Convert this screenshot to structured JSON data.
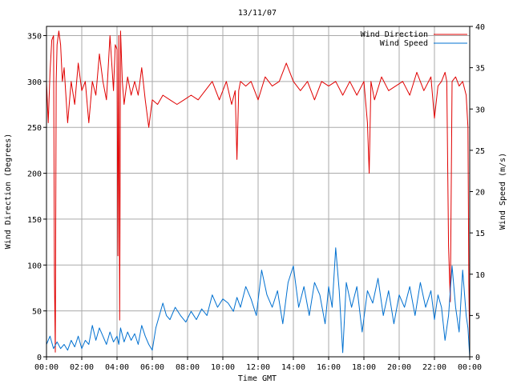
{
  "chart_data": {
    "type": "line",
    "title": "13/11/07",
    "xlabel": "Time GMT",
    "ylabel_left": "Wind Direction (Degrees)",
    "ylabel_right": "Wind Speed (m/s)",
    "xlim_hours": [
      0,
      24
    ],
    "ylim_left": [
      0,
      360
    ],
    "ylim_right": [
      0,
      40
    ],
    "grid": true,
    "legend_position": "top-right",
    "x_tick_labels": [
      "00:00",
      "02:00",
      "04:00",
      "06:00",
      "08:00",
      "10:00",
      "12:00",
      "14:00",
      "16:00",
      "18:00",
      "20:00",
      "22:00",
      "00:00"
    ],
    "y_left_ticks": [
      0,
      50,
      100,
      150,
      200,
      250,
      300,
      350
    ],
    "y_right_ticks": [
      0,
      5,
      10,
      15,
      20,
      25,
      30,
      35,
      40
    ],
    "series": [
      {
        "name": "Wind Direction",
        "axis": "left",
        "color": "#e00000",
        "hours": [
          0.0,
          0.1,
          0.2,
          0.3,
          0.4,
          0.45,
          0.5,
          0.55,
          0.6,
          0.7,
          0.8,
          0.9,
          1.0,
          1.2,
          1.4,
          1.6,
          1.8,
          2.0,
          2.2,
          2.4,
          2.6,
          2.8,
          3.0,
          3.2,
          3.4,
          3.6,
          3.7,
          3.8,
          3.9,
          4.0,
          4.05,
          4.1,
          4.15,
          4.2,
          4.3,
          4.4,
          4.6,
          4.8,
          5.0,
          5.2,
          5.4,
          5.6,
          5.8,
          6.0,
          6.3,
          6.6,
          7.0,
          7.4,
          7.8,
          8.2,
          8.6,
          9.0,
          9.4,
          9.8,
          10.2,
          10.5,
          10.7,
          10.8,
          10.9,
          11.0,
          11.3,
          11.6,
          12.0,
          12.4,
          12.8,
          13.2,
          13.6,
          14.0,
          14.4,
          14.8,
          15.2,
          15.6,
          16.0,
          16.4,
          16.8,
          17.2,
          17.6,
          18.0,
          18.2,
          18.3,
          18.4,
          18.6,
          19.0,
          19.4,
          19.8,
          20.2,
          20.6,
          21.0,
          21.4,
          21.8,
          22.0,
          22.2,
          22.4,
          22.6,
          22.7,
          22.8,
          22.9,
          23.0,
          23.2,
          23.4,
          23.6,
          23.8,
          23.9,
          23.95,
          24.0
        ],
        "values": [
          300,
          255,
          310,
          345,
          350,
          90,
          5,
          300,
          340,
          355,
          340,
          300,
          315,
          255,
          300,
          275,
          320,
          290,
          300,
          255,
          300,
          285,
          330,
          300,
          280,
          350,
          320,
          290,
          340,
          335,
          110,
          350,
          40,
          355,
          300,
          275,
          305,
          285,
          300,
          285,
          315,
          280,
          250,
          280,
          275,
          285,
          280,
          275,
          280,
          285,
          280,
          290,
          300,
          280,
          300,
          275,
          290,
          215,
          290,
          300,
          295,
          300,
          280,
          305,
          295,
          300,
          320,
          300,
          290,
          300,
          280,
          300,
          295,
          300,
          285,
          300,
          285,
          300,
          255,
          200,
          300,
          280,
          305,
          290,
          295,
          300,
          285,
          310,
          290,
          305,
          260,
          295,
          300,
          310,
          300,
          120,
          60,
          300,
          305,
          295,
          300,
          285,
          250,
          80,
          5
        ]
      },
      {
        "name": "Wind Speed",
        "axis": "right",
        "color": "#0070d0",
        "hours": [
          0.0,
          0.2,
          0.4,
          0.6,
          0.8,
          1.0,
          1.2,
          1.4,
          1.6,
          1.8,
          2.0,
          2.2,
          2.4,
          2.6,
          2.8,
          3.0,
          3.2,
          3.4,
          3.6,
          3.8,
          4.0,
          4.1,
          4.2,
          4.4,
          4.6,
          4.8,
          5.0,
          5.2,
          5.4,
          5.6,
          5.8,
          6.0,
          6.2,
          6.4,
          6.6,
          6.8,
          7.0,
          7.3,
          7.6,
          7.9,
          8.2,
          8.5,
          8.8,
          9.1,
          9.4,
          9.7,
          10.0,
          10.3,
          10.6,
          10.8,
          11.0,
          11.3,
          11.6,
          11.9,
          12.2,
          12.5,
          12.8,
          13.1,
          13.4,
          13.7,
          14.0,
          14.3,
          14.6,
          14.9,
          15.2,
          15.5,
          15.8,
          16.0,
          16.2,
          16.4,
          16.6,
          16.8,
          17.0,
          17.3,
          17.6,
          17.9,
          18.2,
          18.5,
          18.8,
          19.1,
          19.4,
          19.7,
          20.0,
          20.3,
          20.6,
          20.9,
          21.2,
          21.5,
          21.8,
          22.0,
          22.2,
          22.4,
          22.6,
          22.8,
          23.0,
          23.2,
          23.4,
          23.6,
          23.8,
          23.9,
          24.0
        ],
        "values": [
          1.5,
          2.5,
          1,
          1.8,
          1,
          1.5,
          0.8,
          2,
          1.2,
          2.5,
          1,
          2,
          1.5,
          3.8,
          2,
          3.5,
          2.5,
          1.5,
          3,
          1.8,
          2.5,
          1.5,
          3.5,
          1.8,
          3,
          2,
          2.8,
          1.5,
          3.8,
          2.5,
          1.5,
          0.8,
          3.5,
          5,
          6.5,
          5,
          4.5,
          6,
          5,
          4.2,
          5.5,
          4.5,
          5.8,
          5,
          7.5,
          6,
          7,
          6.5,
          5.5,
          7.2,
          6,
          8.5,
          7,
          5,
          10.5,
          7.5,
          6,
          8,
          4,
          9,
          11,
          6,
          8.5,
          5,
          9,
          7.5,
          4,
          8.5,
          6,
          13.2,
          8,
          0.5,
          9,
          6,
          8.5,
          3,
          8,
          6.5,
          9.5,
          5,
          8,
          4,
          7.5,
          6,
          8.5,
          5,
          9,
          6,
          8,
          4.5,
          7.5,
          6,
          2,
          5,
          11,
          6,
          3,
          10.5,
          5,
          3.5,
          0
        ]
      }
    ]
  }
}
